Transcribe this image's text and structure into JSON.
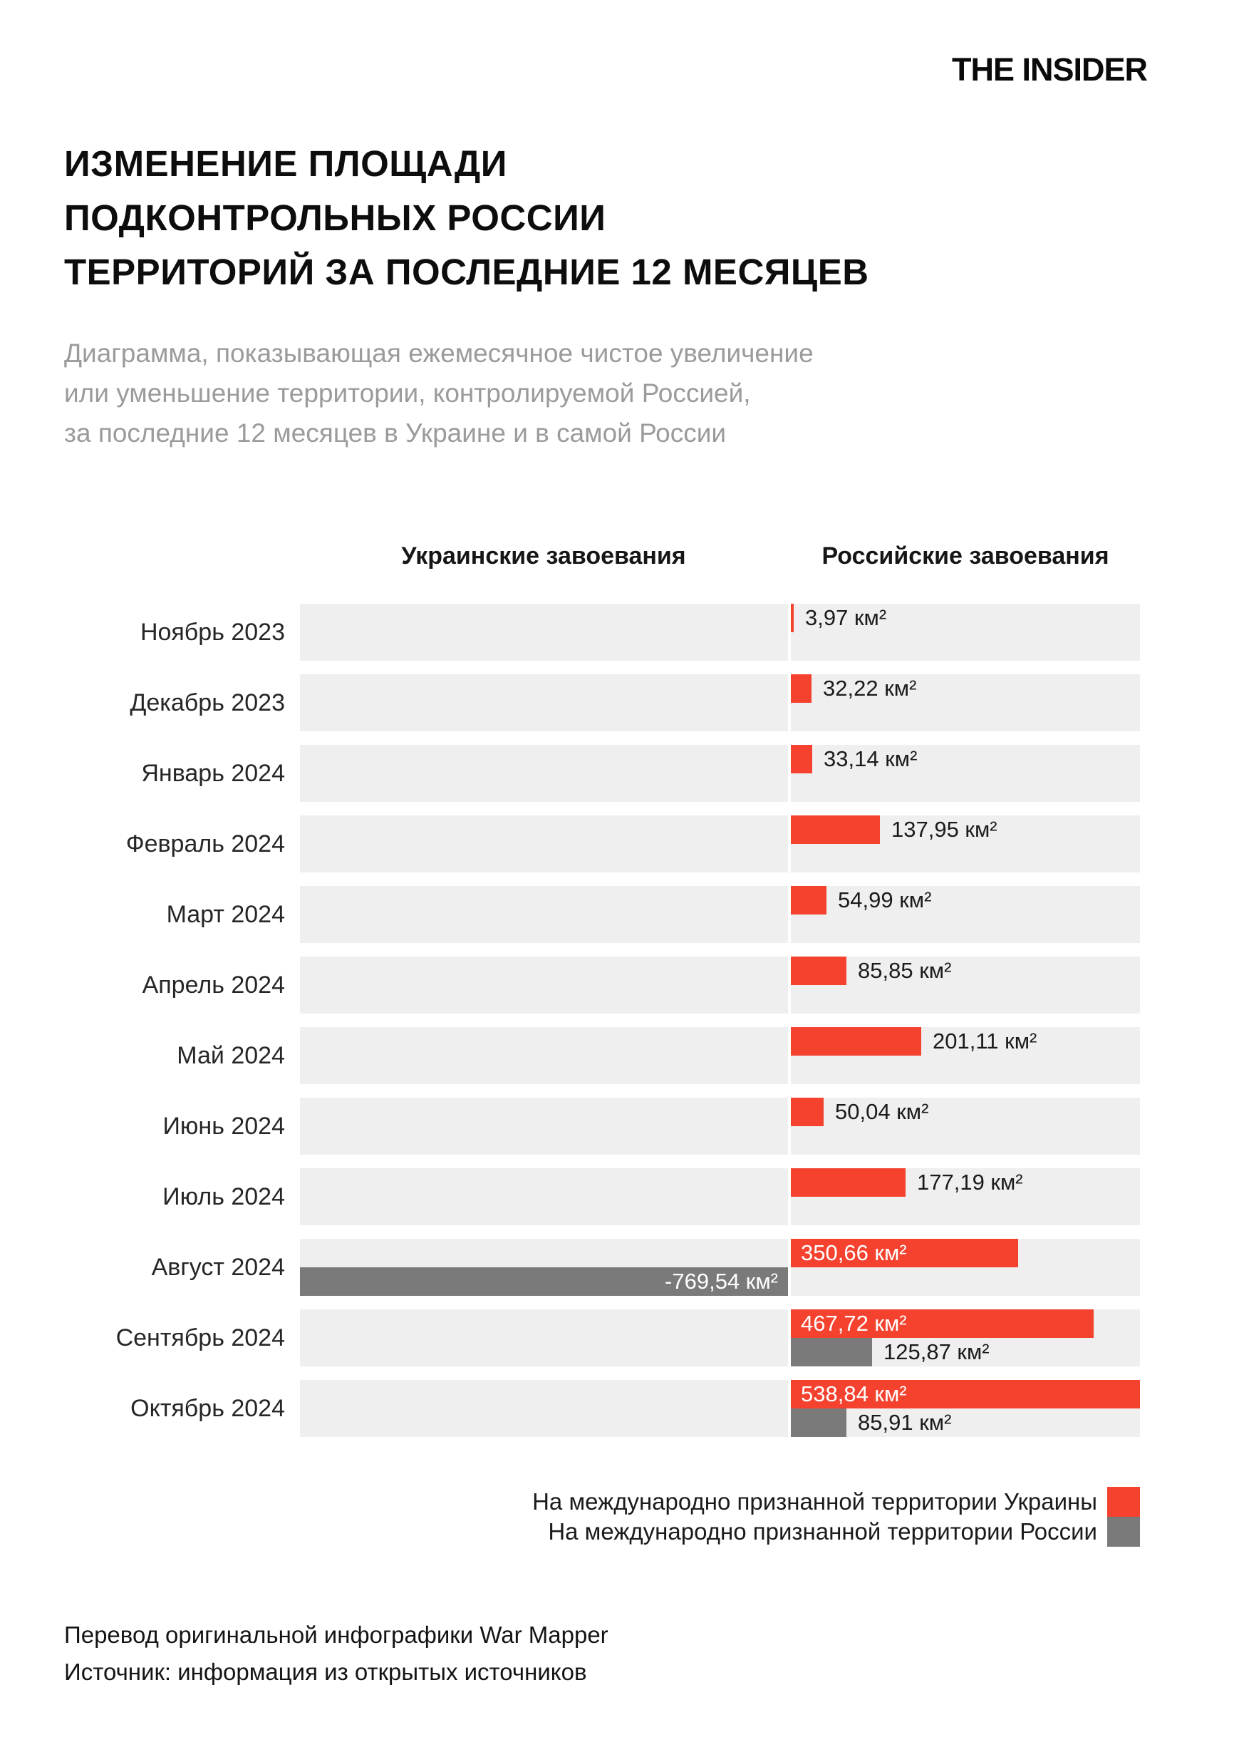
{
  "logo": "THE INSIDER",
  "title_lines": [
    "ИЗМЕНЕНИЕ ПЛОЩАДИ",
    "ПОДКОНТРОЛЬНЫХ РОССИИ",
    "ТЕРРИТОРИЙ ЗА ПОСЛЕДНИЕ 12 МЕСЯЦЕВ"
  ],
  "subtitle_lines": [
    "Диаграмма, показывающая ежемесячное чистое увеличение",
    "или уменьшение территории, контролируемой Россией,",
    "за последние 12 месяцев в Украине и в самой России"
  ],
  "chart_data": {
    "type": "bar",
    "orientation": "horizontal-diverging",
    "unit": "км²",
    "column_headers": [
      "Украинские завоевания",
      "Российские завоевания"
    ],
    "categories": [
      "Ноябрь 2023",
      "Декабрь 2023",
      "Январь 2024",
      "Февраль 2024",
      "Март 2024",
      "Апрель 2024",
      "Май 2024",
      "Июнь 2024",
      "Июль 2024",
      "Август 2024",
      "Сентябрь 2024",
      "Октябрь 2024"
    ],
    "xlim": [
      -769.54,
      538.84
    ],
    "grid": false,
    "row_background": "#efefef",
    "series": [
      {
        "name": "На международно признанной территории Украины",
        "color": "#f4422f",
        "values": [
          3.97,
          32.22,
          33.14,
          137.95,
          54.99,
          85.85,
          201.11,
          50.04,
          177.19,
          350.66,
          467.72,
          538.84
        ],
        "labels": [
          "3,97 км²",
          "32,22 км²",
          "33,14 км²",
          "137,95 км²",
          "54,99 км²",
          "85,85 км²",
          "201,11 км²",
          "50,04 км²",
          "177,19 км²",
          "350,66 км²",
          "467,72 км²",
          "538,84 км²"
        ],
        "label_inside": [
          false,
          false,
          false,
          false,
          false,
          false,
          false,
          false,
          false,
          true,
          true,
          true
        ]
      },
      {
        "name": "На международно признанной территории России",
        "color": "#7a7a7a",
        "values": [
          null,
          null,
          null,
          null,
          null,
          null,
          null,
          null,
          null,
          -769.54,
          125.87,
          85.91
        ],
        "labels": [
          null,
          null,
          null,
          null,
          null,
          null,
          null,
          null,
          null,
          "-769,54 км²",
          "125,87 км²",
          "85,91 км²"
        ],
        "label_inside": [
          false,
          false,
          false,
          false,
          false,
          false,
          false,
          false,
          false,
          true,
          false,
          false
        ]
      }
    ]
  },
  "legend": {
    "items": [
      {
        "label": "На международно признанной территории Украины",
        "color": "#f4422f"
      },
      {
        "label": "На международно признанной территории России",
        "color": "#7a7a7a"
      }
    ]
  },
  "footer_lines": [
    "Перевод оригинальной инфографики War Mapper",
    "Источник: информация из открытых источников"
  ]
}
